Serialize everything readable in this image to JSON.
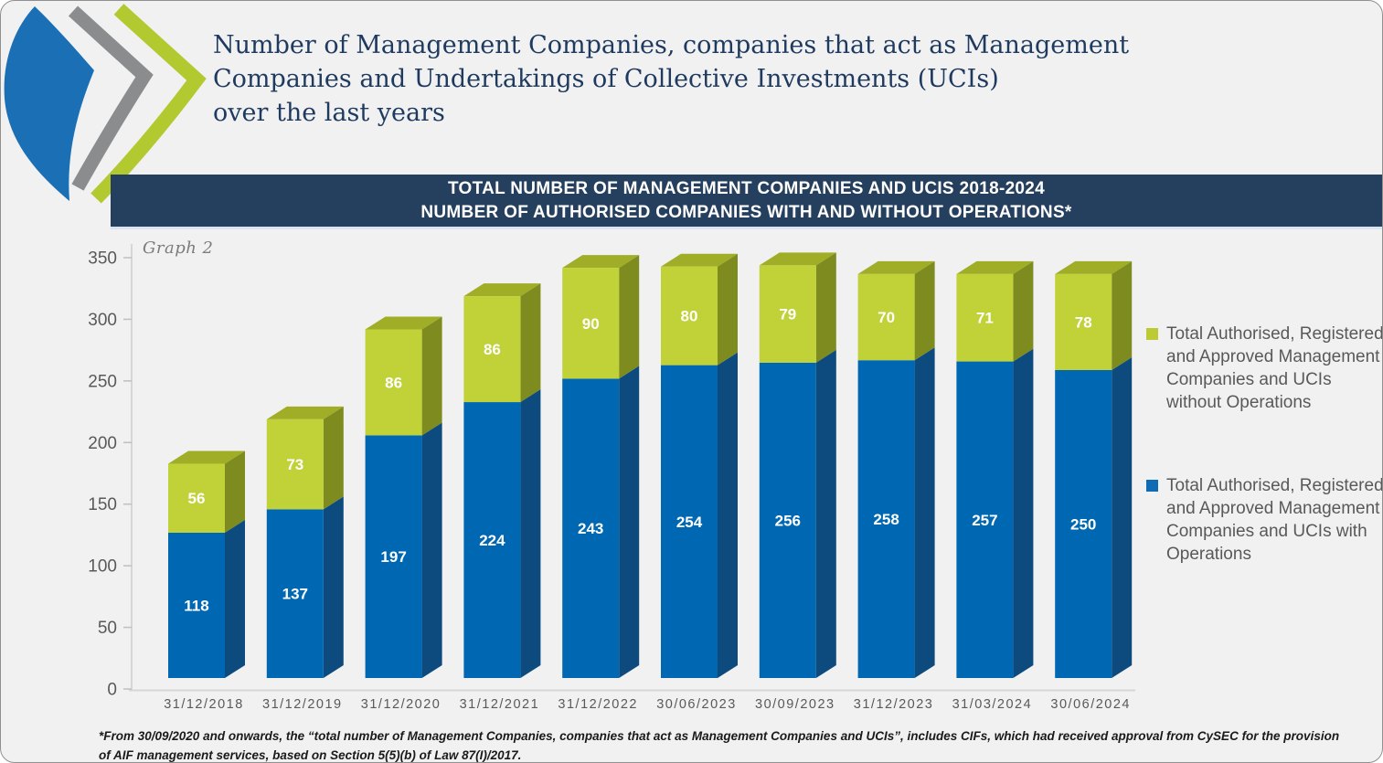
{
  "title": {
    "lines": [
      "Number of Management Companies, companies that act as Management",
      "Companies and Undertakings of Collective Investments (UCIs)",
      "over the last years"
    ]
  },
  "banner": {
    "line1": "TOTAL NUMBER OF MANAGEMENT COMPANIES AND UCIS 2018-2024",
    "line2": "NUMBER OF AUTHORISED COMPANIES WITH AND WITHOUT OPERATIONS*"
  },
  "chart_data": {
    "type": "bar",
    "stacked": true,
    "graph_label": "Graph 2",
    "title": "TOTAL NUMBER OF MANAGEMENT COMPANIES AND UCIS 2018-2024",
    "subtitle": "NUMBER OF AUTHORISED COMPANIES WITH AND WITHOUT OPERATIONS*",
    "categories": [
      "31/12/2018",
      "31/12/2019",
      "31/12/2020",
      "31/12/2021",
      "31/12/2022",
      "30/06/2023",
      "30/09/2023",
      "31/12/2023",
      "31/03/2024",
      "30/06/2024"
    ],
    "series": [
      {
        "name": "Total Authorised, Registered and Approved Management Companies and UCIs with Operations",
        "color": "#0067B2",
        "side_color": "#0D4B7E",
        "values": [
          118,
          137,
          197,
          224,
          243,
          254,
          256,
          258,
          257,
          250
        ]
      },
      {
        "name": "Total Authorised, Registered and Approved Management Companies and UCIs without Operations",
        "color": "#C1D239",
        "side_color": "#7D8B1F",
        "top_color": "#A0AE27",
        "values": [
          56,
          73,
          86,
          86,
          90,
          80,
          79,
          70,
          71,
          78
        ]
      }
    ],
    "ylim": [
      0,
      350
    ],
    "ytick_step": 50,
    "yticks": [
      0,
      50,
      100,
      150,
      200,
      250,
      300,
      350
    ],
    "grid": false,
    "legend_position": "right",
    "value_label_color": "#FFFFFF",
    "axis_text_color": "#595959"
  },
  "legend": {
    "items": [
      {
        "label": "Total Authorised, Registered and Approved Management Companies and UCIs without Operations",
        "color": "#BCCA33"
      },
      {
        "label": "Total Authorised, Registered and Approved Management Companies and UCIs with Operations",
        "color": "#0F6CB4"
      }
    ]
  },
  "footnote": {
    "lines": [
      "*From 30/09/2020 and onwards, the “total number of Management Companies, companies that act as Management Companies and UCIs”, includes CIFs, which had received approval from CySEC for the provision",
      "of AIF management services, based on Section 5(5)(b) of Law 87(I)/2017."
    ]
  },
  "colors": {
    "banner_bg": "#25405E",
    "title_text": "#1F3A5F",
    "page_bg": "#F1F1F2"
  }
}
